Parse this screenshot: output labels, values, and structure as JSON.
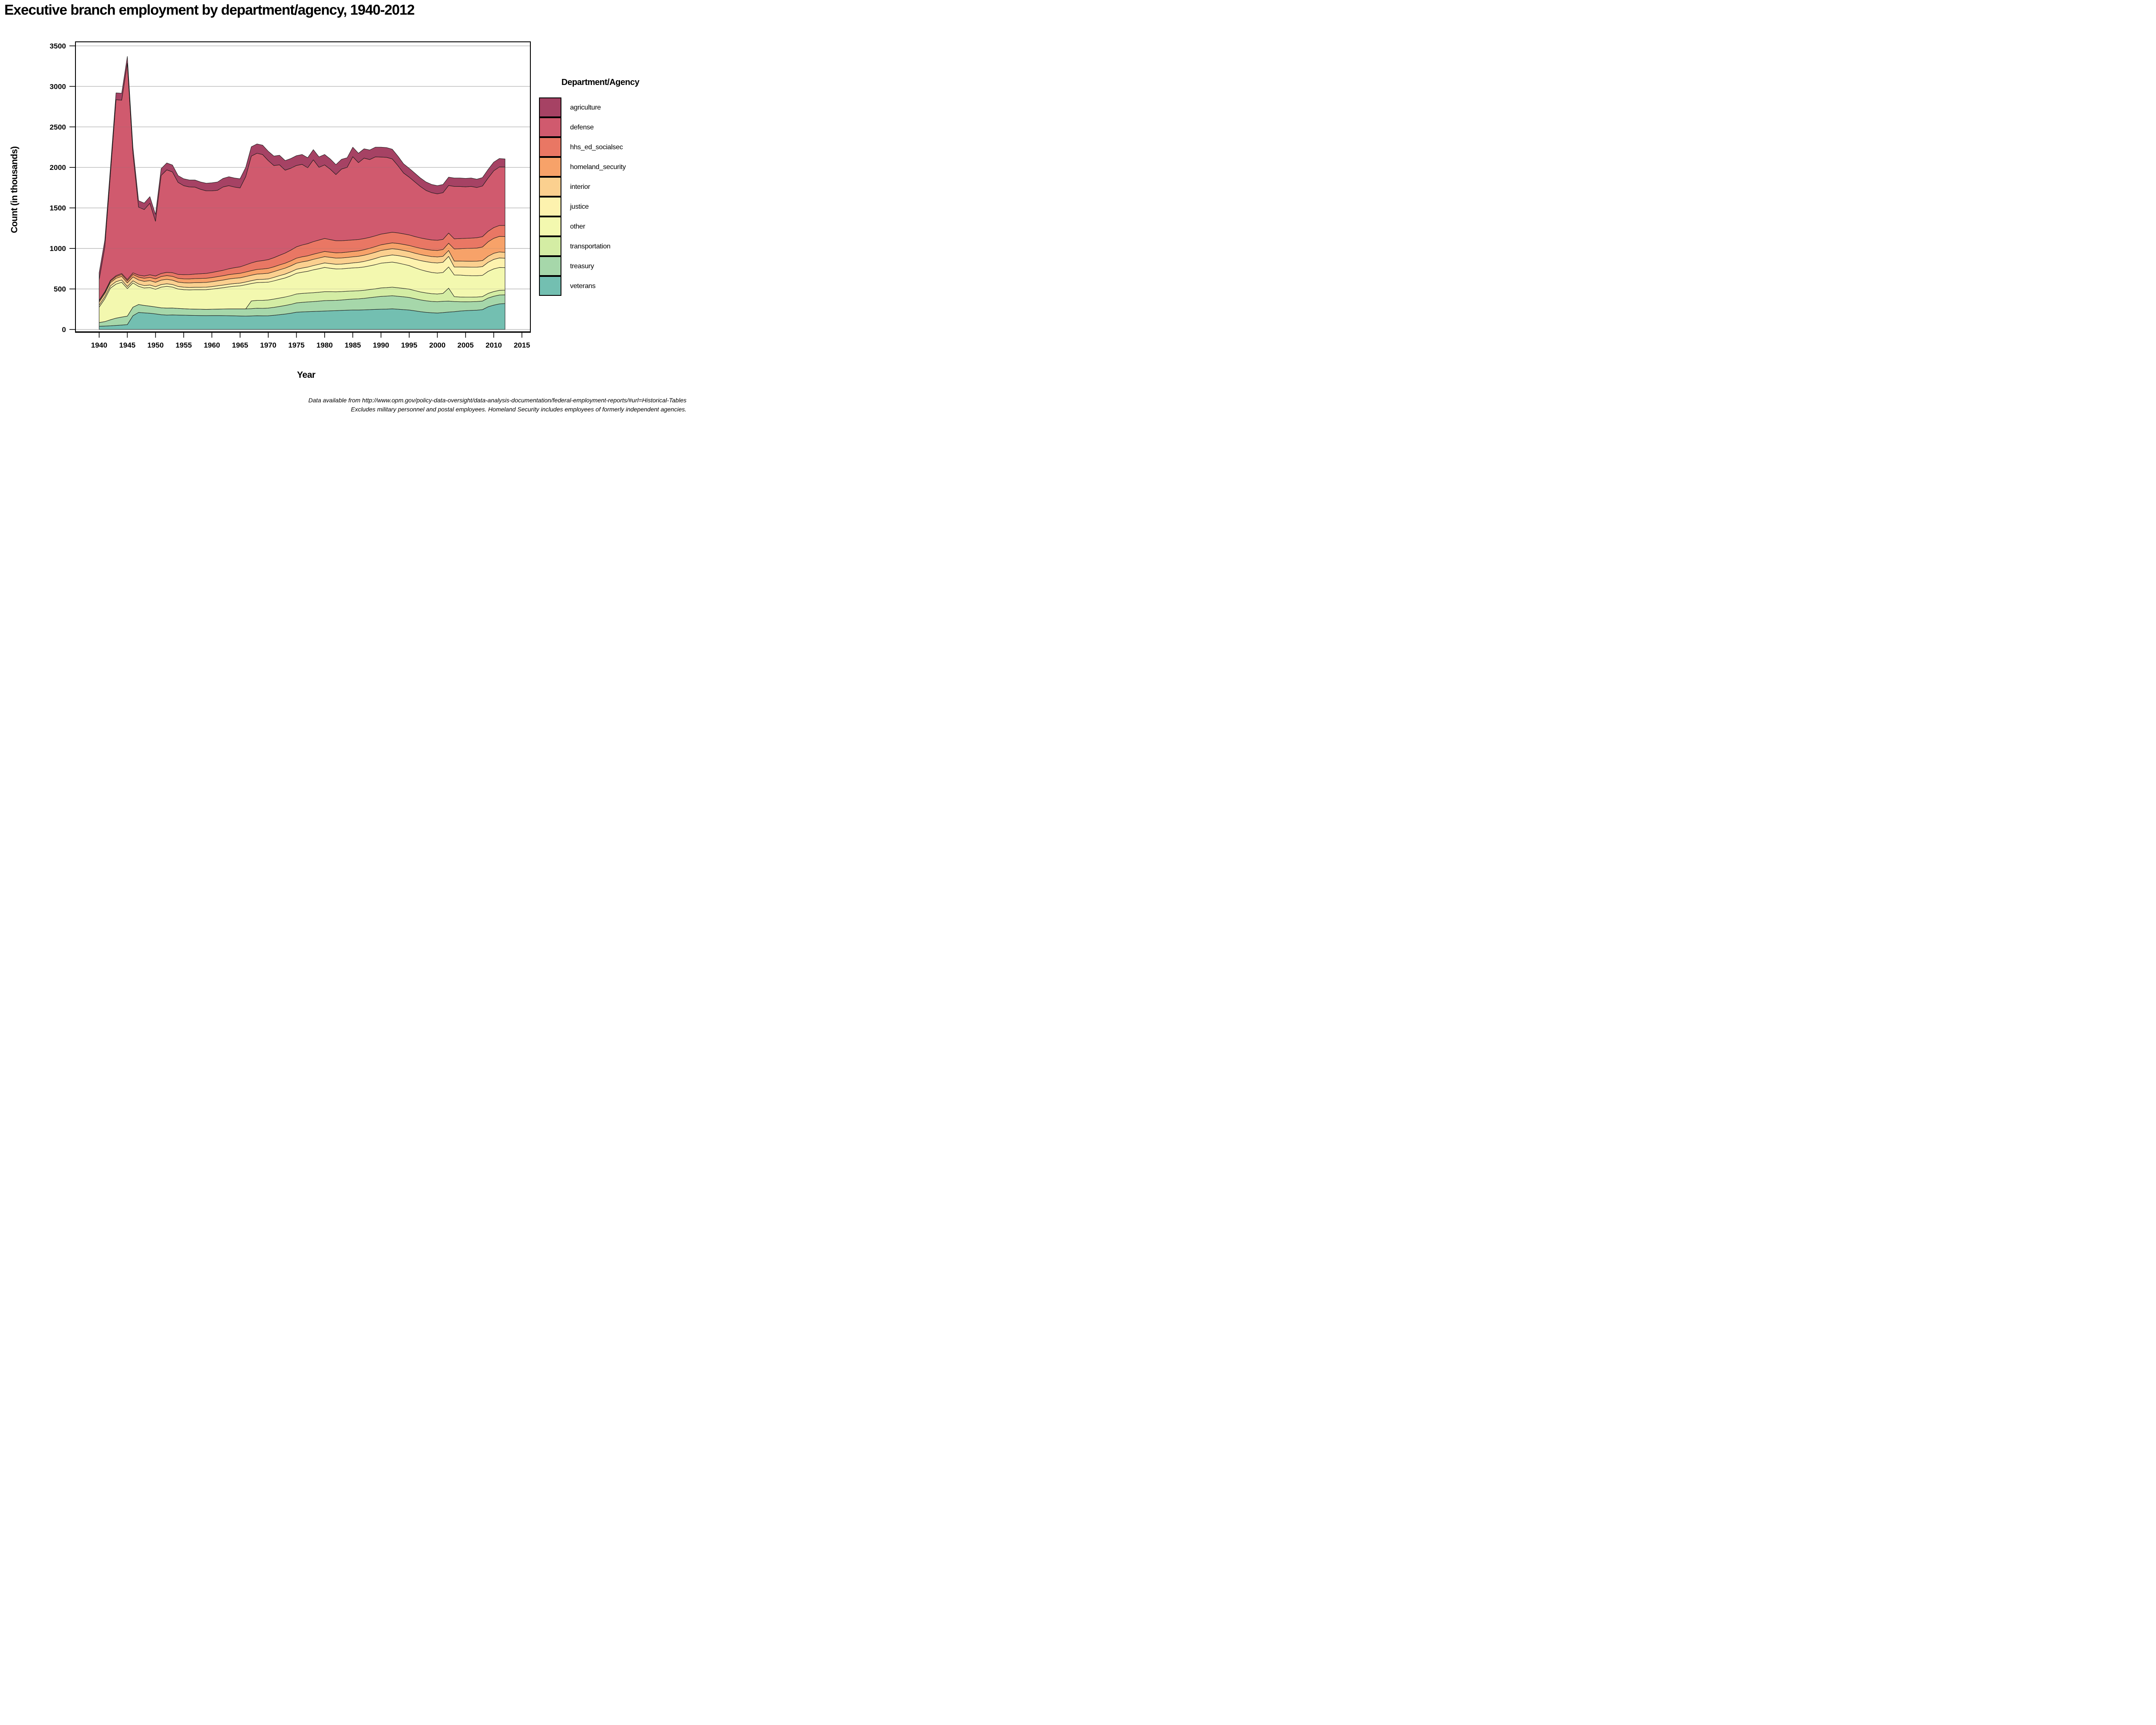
{
  "title": "Executive branch employment by department/agency, 1940-2012",
  "y_axis": {
    "label": "Count (in thousands)",
    "ticks": [
      0,
      500,
      1000,
      1500,
      2000,
      2500,
      3000,
      3500
    ]
  },
  "x_axis": {
    "label": "Year",
    "ticks": [
      1940,
      1945,
      1950,
      1955,
      1960,
      1965,
      1970,
      1975,
      1980,
      1985,
      1990,
      1995,
      2000,
      2005,
      2010,
      2015
    ]
  },
  "legend": {
    "title": "Department/Agency"
  },
  "footer": {
    "line1": "Data available from http://www.opm.gov/policy-data-oversight/data-analysis-documentation/federal-employment-reports/#url=Historical-Tables",
    "line2": "Excludes military personnel and postal employees. Homeland Security includes employees of formerly independent agencies."
  },
  "chart_data": {
    "type": "area",
    "stacked": true,
    "title": "Executive branch employment by department/agency, 1940-2012",
    "xlabel": "Year",
    "ylabel": "Count (in thousands)",
    "ylim": [
      0,
      3500
    ],
    "xlim": [
      1936,
      2016
    ],
    "grid": "horizontal",
    "legend_position": "right",
    "x": [
      1940,
      1941,
      1942,
      1943,
      1944,
      1945,
      1946,
      1947,
      1948,
      1949,
      1950,
      1951,
      1952,
      1953,
      1954,
      1955,
      1956,
      1957,
      1958,
      1959,
      1960,
      1961,
      1962,
      1963,
      1964,
      1965,
      1966,
      1967,
      1968,
      1969,
      1970,
      1971,
      1972,
      1973,
      1974,
      1975,
      1976,
      1977,
      1978,
      1979,
      1980,
      1981,
      1982,
      1983,
      1984,
      1985,
      1986,
      1987,
      1988,
      1989,
      1990,
      1991,
      1992,
      1993,
      1994,
      1995,
      1996,
      1997,
      1998,
      1999,
      2000,
      2001,
      2002,
      2003,
      2004,
      2005,
      2006,
      2007,
      2008,
      2009,
      2010,
      2011,
      2012
    ],
    "series": [
      {
        "name": "agriculture",
        "color": "#a64264",
        "values": [
          85,
          85,
          85,
          85,
          85,
          85,
          82,
          80,
          80,
          82,
          84,
          84,
          85,
          85,
          84,
          85,
          86,
          88,
          90,
          94,
          99,
          102,
          106,
          110,
          112,
          113,
          114,
          115,
          115,
          116,
          116,
          117,
          118,
          119,
          120,
          121,
          122,
          124,
          126,
          128,
          129,
          127,
          123,
          120,
          119,
          118,
          116,
          115,
          118,
          120,
          122,
          121,
          120,
          118,
          114,
          110,
          108,
          106,
          104,
          102,
          101,
          102,
          103,
          104,
          105,
          105,
          104,
          103,
          104,
          106,
          107,
          104,
          100
        ]
      },
      {
        "name": "defense",
        "color": "#d05a6e",
        "values": [
          255,
          550,
          1309,
          2171,
          2139,
          2669,
          1469,
          839,
          820,
          883,
          676,
          1210,
          1265,
          1244,
          1136,
          1098,
          1081,
          1073,
          1042,
          1019,
          1008,
          1001,
          1028,
          1026,
          996,
          974,
          1089,
          1319,
          1334,
          1309,
          1222,
          1137,
          1117,
          1023,
          1011,
          1004,
          996,
          937,
          1010,
          898,
          908,
          869,
          816,
          884,
          901,
          1027,
          949,
          993,
          960,
          974,
          951,
          936,
          905,
          830,
          751,
          713,
          675,
          634,
          600,
          583,
          573,
          576,
          587,
          647,
          643,
          635,
          638,
          620,
          625,
          657,
          701,
          722,
          720
        ]
      },
      {
        "name": "hhs_ed_socialsec",
        "color": "#e97764",
        "values": [
          7,
          8,
          10,
          12,
          14,
          16,
          20,
          25,
          28,
          32,
          35,
          38,
          40,
          45,
          48,
          52,
          54,
          56,
          58,
          60,
          62,
          65,
          68,
          72,
          76,
          80,
          88,
          95,
          100,
          104,
          108,
          112,
          118,
          125,
          132,
          140,
          145,
          150,
          155,
          158,
          160,
          155,
          150,
          148,
          145,
          142,
          140,
          138,
          135,
          133,
          132,
          131,
          131,
          130,
          130,
          130,
          129,
          128,
          127,
          126,
          126,
          125,
          125,
          125,
          125,
          125,
          126,
          127,
          128,
          130,
          132,
          135,
          138
        ]
      },
      {
        "name": "homeland_security",
        "color": "#f7a269",
        "values": [
          15,
          16,
          18,
          20,
          22,
          25,
          30,
          35,
          38,
          40,
          42,
          44,
          46,
          47,
          47,
          48,
          49,
          50,
          51,
          51,
          52,
          52,
          53,
          54,
          54,
          55,
          56,
          56,
          57,
          58,
          60,
          60,
          61,
          61,
          62,
          62,
          63,
          63,
          63,
          64,
          64,
          64,
          65,
          65,
          66,
          66,
          67,
          68,
          69,
          70,
          70,
          71,
          72,
          73,
          74,
          75,
          76,
          77,
          78,
          79,
          80,
          83,
          90,
          150,
          153,
          157,
          160,
          162,
          168,
          178,
          185,
          192,
          195
        ]
      },
      {
        "name": "interior",
        "color": "#fbd08f",
        "values": [
          38,
          38,
          40,
          42,
          44,
          45,
          48,
          50,
          52,
          54,
          55,
          55,
          55,
          54,
          54,
          55,
          56,
          57,
          58,
          59,
          60,
          61,
          62,
          64,
          65,
          66,
          67,
          68,
          68,
          69,
          70,
          71,
          72,
          73,
          74,
          75,
          76,
          76,
          77,
          77,
          77,
          77,
          76,
          76,
          75,
          75,
          75,
          76,
          76,
          77,
          77,
          77,
          77,
          77,
          76,
          76,
          75,
          75,
          74,
          74,
          74,
          74,
          73,
          73,
          73,
          73,
          73,
          74,
          74,
          75,
          75,
          74,
          72
        ]
      },
      {
        "name": "justice",
        "color": "#fdf2ae",
        "values": [
          25,
          26,
          28,
          30,
          28,
          25,
          26,
          28,
          30,
          31,
          32,
          32,
          32,
          32,
          31,
          31,
          31,
          31,
          31,
          31,
          31,
          32,
          32,
          33,
          33,
          33,
          34,
          35,
          37,
          38,
          40,
          43,
          46,
          48,
          49,
          50,
          51,
          52,
          53,
          55,
          56,
          57,
          58,
          59,
          60,
          62,
          65,
          68,
          72,
          76,
          80,
          84,
          88,
          92,
          95,
          98,
          105,
          112,
          118,
          122,
          125,
          127,
          130,
          98,
          100,
          103,
          105,
          106,
          108,
          112,
          117,
          118,
          117
        ]
      },
      {
        "name": "other",
        "color": "#f3f8af",
        "values": [
          190,
          280,
          390,
          420,
          430,
          340,
          300,
          225,
          215,
          230,
          218,
          255,
          268,
          258,
          240,
          235,
          235,
          238,
          240,
          243,
          248,
          255,
          263,
          272,
          280,
          285,
          298,
          215,
          220,
          222,
          220,
          225,
          230,
          235,
          245,
          255,
          262,
          268,
          282,
          290,
          300,
          290,
          282,
          280,
          282,
          285,
          285,
          288,
          292,
          298,
          305,
          308,
          310,
          305,
          298,
          290,
          282,
          275,
          268,
          262,
          258,
          258,
          262,
          268,
          270,
          268,
          265,
          263,
          262,
          272,
          280,
          282,
          278
        ]
      },
      {
        "name": "transportation",
        "color": "#d4eda4",
        "values": [
          0,
          0,
          0,
          0,
          0,
          0,
          0,
          0,
          0,
          0,
          0,
          0,
          0,
          0,
          0,
          0,
          0,
          0,
          0,
          0,
          0,
          0,
          0,
          0,
          0,
          0,
          0,
          95,
          97,
          98,
          100,
          102,
          104,
          105,
          107,
          110,
          110,
          110,
          110,
          110,
          110,
          108,
          106,
          104,
          102,
          100,
          100,
          100,
          100,
          102,
          105,
          105,
          106,
          105,
          104,
          103,
          100,
          98,
          97,
          96,
          95,
          97,
          160,
          60,
          58,
          57,
          56,
          55,
          55,
          57,
          58,
          58,
          57
        ]
      },
      {
        "name": "treasury",
        "color": "#a6d7aa",
        "values": [
          45,
          55,
          75,
          90,
          98,
          105,
          105,
          98,
          92,
          88,
          86,
          85,
          86,
          85,
          82,
          80,
          79,
          79,
          78,
          77,
          78,
          80,
          82,
          84,
          86,
          88,
          89,
          90,
          92,
          93,
          95,
          98,
          102,
          106,
          110,
          115,
          118,
          120,
          122,
          125,
          128,
          128,
          127,
          129,
          132,
          135,
          138,
          142,
          148,
          152,
          158,
          160,
          161,
          160,
          158,
          155,
          150,
          145,
          142,
          140,
          140,
          140,
          135,
          125,
          115,
          110,
          108,
          107,
          106,
          108,
          110,
          110,
          108
        ]
      },
      {
        "name": "veterans",
        "color": "#73bfb1",
        "values": [
          40,
          42,
          45,
          50,
          55,
          60,
          170,
          210,
          205,
          200,
          192,
          182,
          178,
          180,
          178,
          176,
          174,
          173,
          172,
          171,
          172,
          172,
          171,
          170,
          168,
          166,
          165,
          167,
          170,
          168,
          169,
          175,
          182,
          190,
          200,
          213,
          217,
          220,
          222,
          225,
          228,
          230,
          232,
          235,
          238,
          240,
          240,
          242,
          245,
          248,
          250,
          252,
          255,
          250,
          245,
          240,
          230,
          220,
          212,
          206,
          203,
          208,
          215,
          220,
          228,
          232,
          235,
          238,
          245,
          280,
          300,
          315,
          320
        ]
      }
    ]
  }
}
